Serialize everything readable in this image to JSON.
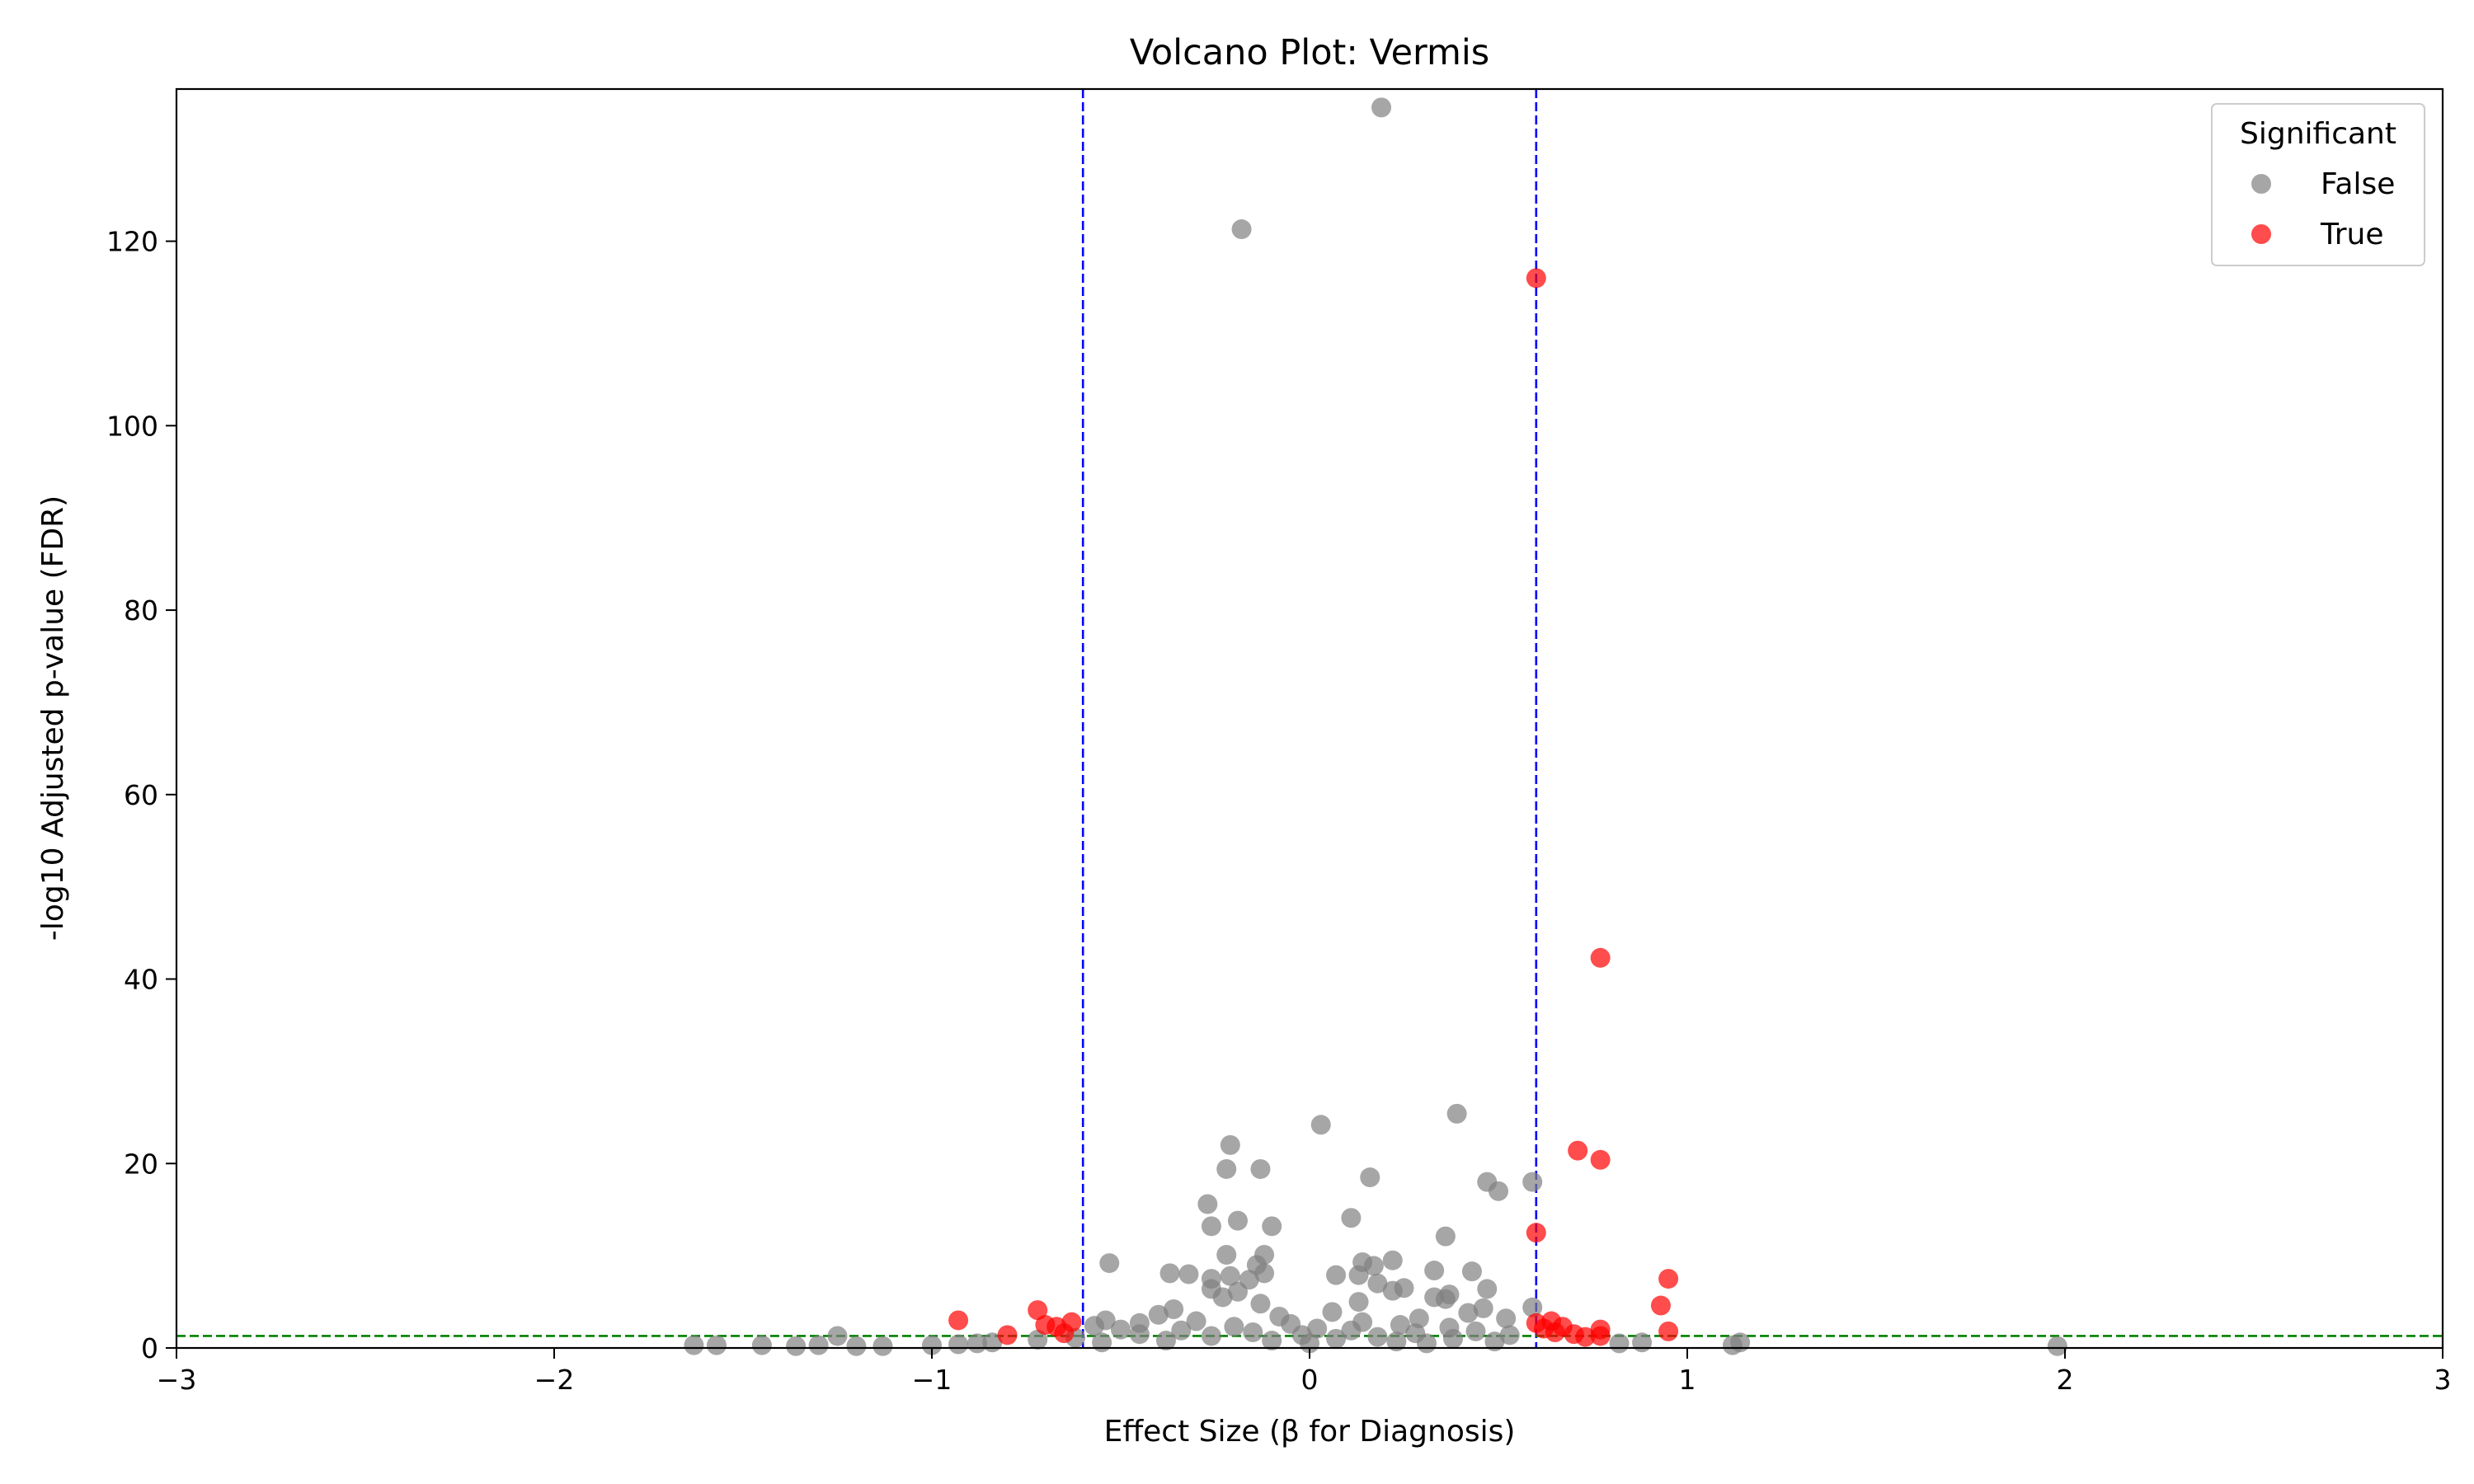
{
  "chart_data": {
    "type": "scatter",
    "title": "Volcano Plot: Vermis",
    "xlabel": "Effect Size (β for Diagnosis)",
    "ylabel": "-log10 Adjusted p-value (FDR)",
    "xlim": [
      -3,
      3
    ],
    "ylim": [
      0,
      136.5
    ],
    "xticks": [
      "−3",
      "−2",
      "−1",
      "0",
      "1",
      "2",
      "3"
    ],
    "xtick_values": [
      -3,
      -2,
      -1,
      0,
      1,
      2,
      3
    ],
    "yticks": [
      "0",
      "20",
      "40",
      "60",
      "80",
      "100",
      "120"
    ],
    "ytick_values": [
      0,
      20,
      40,
      60,
      80,
      100,
      120
    ],
    "grid": false,
    "legend": {
      "title": "Significant",
      "placement": "top-right",
      "entries": [
        {
          "label": "False",
          "color": "#808080"
        },
        {
          "label": "True",
          "color": "#ff0000"
        }
      ]
    },
    "reference_lines": [
      {
        "orientation": "vertical",
        "value": -0.6,
        "color": "#0000ff",
        "style": "dashed"
      },
      {
        "orientation": "vertical",
        "value": 0.6,
        "color": "#0000ff",
        "style": "dashed"
      },
      {
        "orientation": "horizontal",
        "value": 1.3,
        "color": "#008000",
        "style": "dashed"
      }
    ],
    "series": [
      {
        "name": "False",
        "color": "#808080",
        "points": [
          [
            0.19,
            134.5
          ],
          [
            -0.18,
            121.3
          ],
          [
            0.39,
            25.4
          ],
          [
            0.03,
            24.2
          ],
          [
            -0.21,
            22.0
          ],
          [
            -0.22,
            19.4
          ],
          [
            -0.13,
            19.4
          ],
          [
            0.16,
            18.5
          ],
          [
            0.47,
            18.0
          ],
          [
            0.59,
            18.0
          ],
          [
            0.5,
            17.0
          ],
          [
            -0.27,
            15.6
          ],
          [
            0.11,
            14.1
          ],
          [
            -0.19,
            13.8
          ],
          [
            -0.26,
            13.2
          ],
          [
            -0.1,
            13.2
          ],
          [
            0.36,
            12.1
          ],
          [
            -0.22,
            10.1
          ],
          [
            -0.12,
            10.1
          ],
          [
            0.22,
            9.5
          ],
          [
            0.14,
            9.3
          ],
          [
            -0.53,
            9.2
          ],
          [
            -0.14,
            9.0
          ],
          [
            0.17,
            8.9
          ],
          [
            0.33,
            8.4
          ],
          [
            0.43,
            8.3
          ],
          [
            -0.37,
            8.1
          ],
          [
            -0.12,
            8.1
          ],
          [
            -0.32,
            8.0
          ],
          [
            0.07,
            7.9
          ],
          [
            0.13,
            7.9
          ],
          [
            -0.21,
            7.8
          ],
          [
            -0.26,
            7.5
          ],
          [
            -0.16,
            7.4
          ],
          [
            0.18,
            7.0
          ],
          [
            -0.26,
            6.4
          ],
          [
            0.25,
            6.5
          ],
          [
            0.47,
            6.4
          ],
          [
            -0.19,
            6.1
          ],
          [
            0.22,
            6.2
          ],
          [
            0.37,
            5.8
          ],
          [
            -0.23,
            5.5
          ],
          [
            0.33,
            5.5
          ],
          [
            0.36,
            5.3
          ],
          [
            0.13,
            5.0
          ],
          [
            -0.13,
            4.8
          ],
          [
            0.59,
            4.4
          ],
          [
            -0.36,
            4.2
          ],
          [
            0.46,
            4.3
          ],
          [
            0.06,
            3.9
          ],
          [
            0.42,
            3.8
          ],
          [
            -0.4,
            3.6
          ],
          [
            -0.08,
            3.4
          ],
          [
            0.29,
            3.2
          ],
          [
            0.52,
            3.2
          ],
          [
            -0.54,
            3.0
          ],
          [
            -0.3,
            2.9
          ],
          [
            0.14,
            2.8
          ],
          [
            -0.45,
            2.7
          ],
          [
            -0.05,
            2.6
          ],
          [
            0.24,
            2.5
          ],
          [
            -0.57,
            2.4
          ],
          [
            -0.2,
            2.3
          ],
          [
            0.37,
            2.2
          ],
          [
            0.02,
            2.1
          ],
          [
            -0.5,
            2.0
          ],
          [
            -0.34,
            1.9
          ],
          [
            0.11,
            1.9
          ],
          [
            0.44,
            1.8
          ],
          [
            -0.15,
            1.7
          ],
          [
            0.28,
            1.6
          ],
          [
            -0.45,
            1.5
          ],
          [
            -0.02,
            1.4
          ],
          [
            0.53,
            1.4
          ],
          [
            -0.26,
            1.3
          ],
          [
            0.18,
            1.2
          ],
          [
            -0.62,
            1.1
          ],
          [
            0.07,
            1.0
          ],
          [
            0.38,
            1.0
          ],
          [
            -0.72,
            0.9
          ],
          [
            -0.38,
            0.8
          ],
          [
            -0.1,
            0.8
          ],
          [
            0.23,
            0.7
          ],
          [
            0.49,
            0.7
          ],
          [
            -0.84,
            0.6
          ],
          [
            -0.55,
            0.6
          ],
          [
            0.0,
            0.5
          ],
          [
            0.31,
            0.5
          ],
          [
            -1.25,
            1.3
          ],
          [
            -1.63,
            0.3
          ],
          [
            -1.57,
            0.3
          ],
          [
            -1.45,
            0.3
          ],
          [
            -1.36,
            0.2
          ],
          [
            -1.3,
            0.3
          ],
          [
            -1.2,
            0.2
          ],
          [
            -1.13,
            0.2
          ],
          [
            -1.0,
            0.3
          ],
          [
            -0.93,
            0.4
          ],
          [
            -0.88,
            0.5
          ],
          [
            0.82,
            0.5
          ],
          [
            0.88,
            0.6
          ],
          [
            1.12,
            0.3
          ],
          [
            1.14,
            0.6
          ],
          [
            1.98,
            0.2
          ]
        ]
      },
      {
        "name": "True",
        "color": "#ff0000",
        "points": [
          [
            0.6,
            116.0
          ],
          [
            0.77,
            42.3
          ],
          [
            0.71,
            21.4
          ],
          [
            0.77,
            20.4
          ],
          [
            0.6,
            12.5
          ],
          [
            0.95,
            7.5
          ],
          [
            0.93,
            4.6
          ],
          [
            -0.72,
            4.1
          ],
          [
            -0.93,
            3.0
          ],
          [
            -0.63,
            2.8
          ],
          [
            -0.7,
            2.5
          ],
          [
            -0.67,
            2.3
          ],
          [
            0.64,
            2.9
          ],
          [
            0.6,
            2.7
          ],
          [
            0.67,
            2.3
          ],
          [
            0.62,
            2.1
          ],
          [
            0.77,
            2.0
          ],
          [
            0.95,
            1.8
          ],
          [
            0.65,
            1.7
          ],
          [
            0.7,
            1.5
          ],
          [
            -0.8,
            1.4
          ],
          [
            0.73,
            1.2
          ],
          [
            0.77,
            1.3
          ],
          [
            -0.65,
            1.6
          ]
        ]
      }
    ]
  }
}
